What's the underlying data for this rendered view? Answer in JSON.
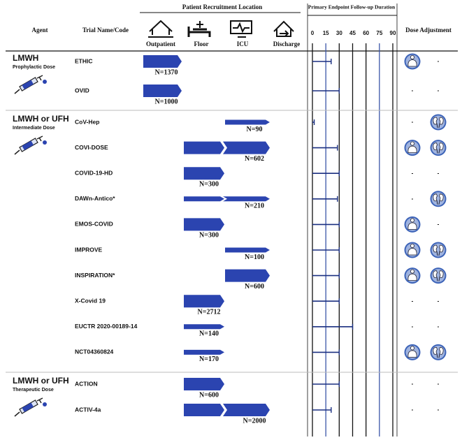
{
  "header": {
    "agent": "Agent",
    "trial": "Trial Name/Code",
    "recruitment": "Patient Recruitment Location",
    "locations": [
      "Outpatient",
      "Floor",
      "ICU",
      "Discharge"
    ],
    "followup": "Primary Endpoint Follow-up Duration",
    "dose_adjustment": "Dose Adjustment"
  },
  "followup_ticks": [
    0,
    15,
    30,
    45,
    60,
    75,
    90
  ],
  "followup_tick_colors": [
    "#111",
    "#3a55a8",
    "#111",
    "#111",
    "#111",
    "#3a55a8",
    "#111"
  ],
  "dash": "-",
  "bar_color": "#2b44b0",
  "groups": [
    {
      "agent": "LMWH",
      "dose": "Prophylactic Dose",
      "trials": [
        {
          "name": "ETHIC",
          "n": "N=1370",
          "locations": [
            0
          ],
          "thin": false,
          "followup": 21,
          "weight": true,
          "renal": false
        },
        {
          "name": "OVID",
          "n": "N=1000",
          "locations": [
            0
          ],
          "thin": false,
          "followup": 30,
          "weight": false,
          "renal": false
        }
      ]
    },
    {
      "agent": "LMWH or UFH",
      "dose": "Intermediate Dose",
      "trials": [
        {
          "name": "CoV-Hep",
          "n": "N=90",
          "locations": [
            2
          ],
          "thin": true,
          "followup": 2,
          "weight": false,
          "renal": true
        },
        {
          "name": "COVI-DOSE",
          "n": "N=602",
          "locations": [
            1,
            2
          ],
          "thin": false,
          "followup": 28,
          "weight": true,
          "renal": true
        },
        {
          "name": "COVID-19-HD",
          "n": "N=300",
          "locations": [
            1
          ],
          "thin": false,
          "followup": 30,
          "weight": false,
          "renal": false
        },
        {
          "name": "DAWn-Antico*",
          "n": "N=210",
          "locations": [
            1,
            2
          ],
          "thin": true,
          "followup": 28,
          "weight": false,
          "renal": true
        },
        {
          "name": "EMOS-COVID",
          "n": "N=300",
          "locations": [
            1
          ],
          "thin": false,
          "followup": 30,
          "weight": true,
          "renal": false
        },
        {
          "name": "IMPROVE",
          "n": "N=100",
          "locations": [
            2
          ],
          "thin": true,
          "followup": 30,
          "weight": true,
          "renal": true
        },
        {
          "name": "INSPIRATION*",
          "n": "N=600",
          "locations": [
            2
          ],
          "thin": false,
          "followup": 30,
          "weight": true,
          "renal": true
        },
        {
          "name": "X-Covid 19",
          "n": "N=2712",
          "locations": [
            1
          ],
          "thin": false,
          "followup": 30,
          "weight": false,
          "renal": false
        },
        {
          "name": "EUCTR 2020-00189-14",
          "n": "N=140",
          "locations": [
            1
          ],
          "thin": true,
          "followup": 45,
          "weight": false,
          "renal": false
        },
        {
          "name": "NCT04360824",
          "n": "N=170",
          "locations": [
            1
          ],
          "thin": true,
          "followup": 30,
          "weight": true,
          "renal": true
        }
      ]
    },
    {
      "agent": "LMWH or UFH",
      "dose": "Therapeutic Dose",
      "trials": [
        {
          "name": "ACTION",
          "n": "N=600",
          "locations": [
            1
          ],
          "thin": false,
          "followup": 30,
          "weight": false,
          "renal": false
        },
        {
          "name": "ACTIV-4a",
          "n": "N=2000",
          "locations": [
            1,
            2
          ],
          "thin": false,
          "followup": 21,
          "weight": false,
          "renal": false
        }
      ]
    }
  ]
}
